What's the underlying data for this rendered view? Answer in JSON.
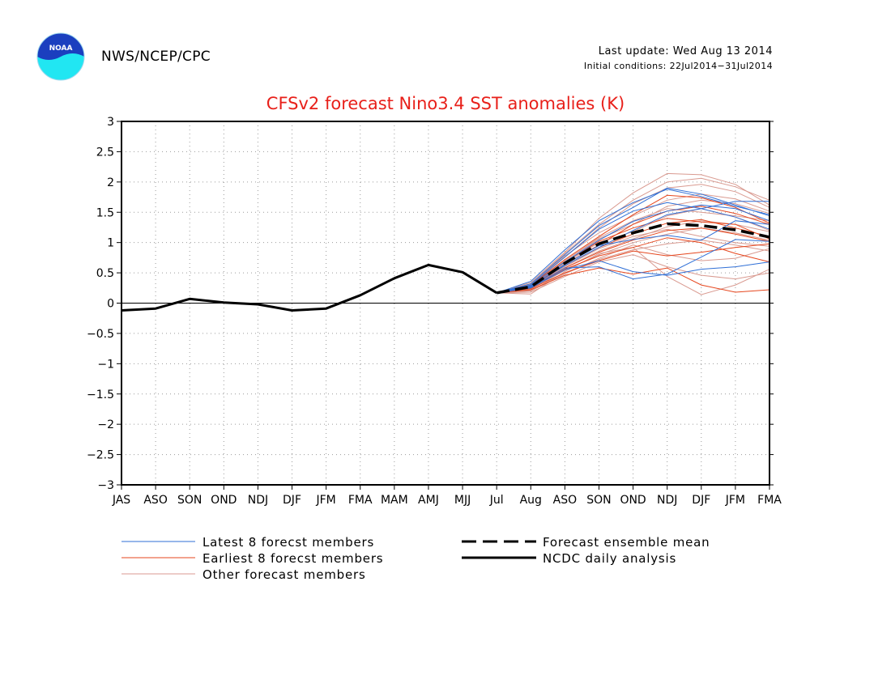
{
  "header": {
    "org": "NWS/NCEP/CPC",
    "last_update": "Last update: Wed Aug 13 2014",
    "initial_conditions": "Initial conditions: 22Jul2014−31Jul2014",
    "logo_text": "NOAA",
    "logo_icon": "noaa-logo-icon"
  },
  "colors": {
    "title": "#e8201a",
    "latest": "#2f6fd6",
    "earliest": "#e6461d",
    "other": "#d99a90",
    "observed": "#000000",
    "grid": "#9a9a9a",
    "logo_blue": "#1b3fbf",
    "logo_cyan": "#21e6f2"
  },
  "chart_data": {
    "type": "line",
    "title": "CFSv2 forecast Nino3.4 SST anomalies (K)",
    "xlabel": "",
    "ylabel": "",
    "categories": [
      "JAS",
      "ASO",
      "SON",
      "OND",
      "NDJ",
      "DJF",
      "JFM",
      "FMA",
      "MAM",
      "AMJ",
      "MJJ",
      "Jul",
      "Aug",
      "ASO",
      "SON",
      "OND",
      "NDJ",
      "DJF",
      "JFM",
      "FMA"
    ],
    "ylim": [
      -3,
      3
    ],
    "yticks": [
      "3",
      "2.5",
      "2",
      "1.5",
      "1",
      "0.5",
      "0",
      "−0.5",
      "−1",
      "−1.5",
      "−2",
      "−2.5",
      "−3"
    ],
    "ytick_values": [
      3,
      2.5,
      2,
      1.5,
      1,
      0.5,
      0,
      -0.5,
      -1,
      -1.5,
      -2,
      -2.5,
      -3
    ],
    "grid": true,
    "zero_line": true,
    "legend": {
      "latest": "Latest 8 forecst members",
      "earliest": "Earliest 8 forecst members",
      "other": "Other forecast members",
      "mean": "Forecast ensemble mean",
      "observed": "NCDC daily analysis"
    },
    "observed": {
      "name": "NCDC daily analysis",
      "x": [
        "JAS",
        "ASO",
        "SON",
        "OND",
        "NDJ",
        "DJF",
        "JFM",
        "FMA",
        "MAM",
        "AMJ",
        "MJJ",
        "Jul"
      ],
      "values": [
        -0.12,
        -0.09,
        0.07,
        0.01,
        -0.02,
        -0.12,
        -0.09,
        0.13,
        0.41,
        0.63,
        0.51,
        0.17
      ]
    },
    "ensemble_mean": {
      "name": "Forecast ensemble mean",
      "x": [
        "Jul",
        "Aug",
        "ASO",
        "SON",
        "OND",
        "NDJ",
        "DJF",
        "JFM",
        "FMA"
      ],
      "values": [
        0.17,
        0.27,
        0.66,
        0.98,
        1.16,
        1.31,
        1.28,
        1.21,
        1.09
      ]
    },
    "members_x": [
      "Jul",
      "Aug",
      "ASO",
      "SON",
      "OND",
      "NDJ",
      "DJF",
      "JFM",
      "FMA"
    ],
    "latest_members": [
      [
        0.17,
        0.36,
        0.88,
        1.36,
        1.66,
        1.88,
        1.76,
        1.6,
        1.46
      ],
      [
        0.17,
        0.3,
        0.76,
        1.22,
        1.52,
        1.66,
        1.56,
        1.68,
        1.68
      ],
      [
        0.17,
        0.32,
        0.8,
        1.28,
        1.58,
        1.9,
        1.8,
        1.62,
        1.44
      ],
      [
        0.17,
        0.28,
        0.62,
        0.92,
        1.2,
        1.46,
        1.56,
        1.42,
        1.22
      ],
      [
        0.17,
        0.25,
        0.55,
        0.7,
        0.52,
        0.46,
        0.56,
        0.6,
        0.68
      ],
      [
        0.17,
        0.26,
        0.58,
        0.6,
        0.4,
        0.48,
        0.76,
        1.05,
        1.02
      ],
      [
        0.17,
        0.27,
        0.64,
        0.95,
        1.05,
        1.12,
        1.04,
        1.36,
        1.3
      ],
      [
        0.17,
        0.29,
        0.68,
        1.04,
        1.35,
        1.52,
        1.62,
        1.56,
        1.36
      ]
    ],
    "earliest_members": [
      [
        0.17,
        0.24,
        0.5,
        0.7,
        0.86,
        0.78,
        0.84,
        0.92,
        0.98
      ],
      [
        0.17,
        0.26,
        0.58,
        0.84,
        1.04,
        1.2,
        1.24,
        1.14,
        1.02
      ],
      [
        0.17,
        0.28,
        0.64,
        0.96,
        1.3,
        1.52,
        1.6,
        1.48,
        1.3
      ],
      [
        0.17,
        0.22,
        0.46,
        0.58,
        0.48,
        0.58,
        0.3,
        0.18,
        0.22
      ],
      [
        0.17,
        0.3,
        0.72,
        1.1,
        1.46,
        1.78,
        1.74,
        1.58,
        1.32
      ],
      [
        0.17,
        0.25,
        0.56,
        0.78,
        0.92,
        1.08,
        1.0,
        0.82,
        0.68
      ],
      [
        0.17,
        0.27,
        0.62,
        0.92,
        1.14,
        1.32,
        1.38,
        1.24,
        1.1
      ],
      [
        0.17,
        0.29,
        0.68,
        1.02,
        1.24,
        1.4,
        1.34,
        1.3,
        1.06
      ]
    ],
    "other_members": [
      [
        0.17,
        0.34,
        0.84,
        1.4,
        1.82,
        2.14,
        2.12,
        1.96,
        1.62
      ],
      [
        0.17,
        0.32,
        0.82,
        1.3,
        1.7,
        2.0,
        2.06,
        1.92,
        1.7
      ],
      [
        0.17,
        0.3,
        0.76,
        1.24,
        1.64,
        1.9,
        1.96,
        1.84,
        1.58
      ],
      [
        0.17,
        0.28,
        0.7,
        1.08,
        1.36,
        1.56,
        1.5,
        1.44,
        1.36
      ],
      [
        0.17,
        0.2,
        0.48,
        0.74,
        0.96,
        0.8,
        0.7,
        0.74,
        0.9
      ],
      [
        0.17,
        0.18,
        0.44,
        0.68,
        0.8,
        0.6,
        0.46,
        0.4,
        0.5
      ],
      [
        0.17,
        0.15,
        0.52,
        0.82,
        0.92,
        0.44,
        0.14,
        0.3,
        0.56
      ],
      [
        0.17,
        0.26,
        0.6,
        0.9,
        1.1,
        1.22,
        1.1,
        1.0,
        0.94
      ],
      [
        0.17,
        0.27,
        0.66,
        1.0,
        1.18,
        1.44,
        1.56,
        1.42,
        1.2
      ],
      [
        0.17,
        0.29,
        0.7,
        1.06,
        1.3,
        1.6,
        1.7,
        1.64,
        1.48
      ],
      [
        0.17,
        0.23,
        0.54,
        0.8,
        1.0,
        1.14,
        1.24,
        1.16,
        1.04
      ],
      [
        0.17,
        0.31,
        0.78,
        1.16,
        1.44,
        1.7,
        1.8,
        1.72,
        1.52
      ],
      [
        0.17,
        0.25,
        0.58,
        0.86,
        1.06,
        1.26,
        1.36,
        1.3,
        1.18
      ],
      [
        0.17,
        0.21,
        0.5,
        0.72,
        0.88,
        0.98,
        1.04,
        0.96,
        0.86
      ]
    ]
  }
}
